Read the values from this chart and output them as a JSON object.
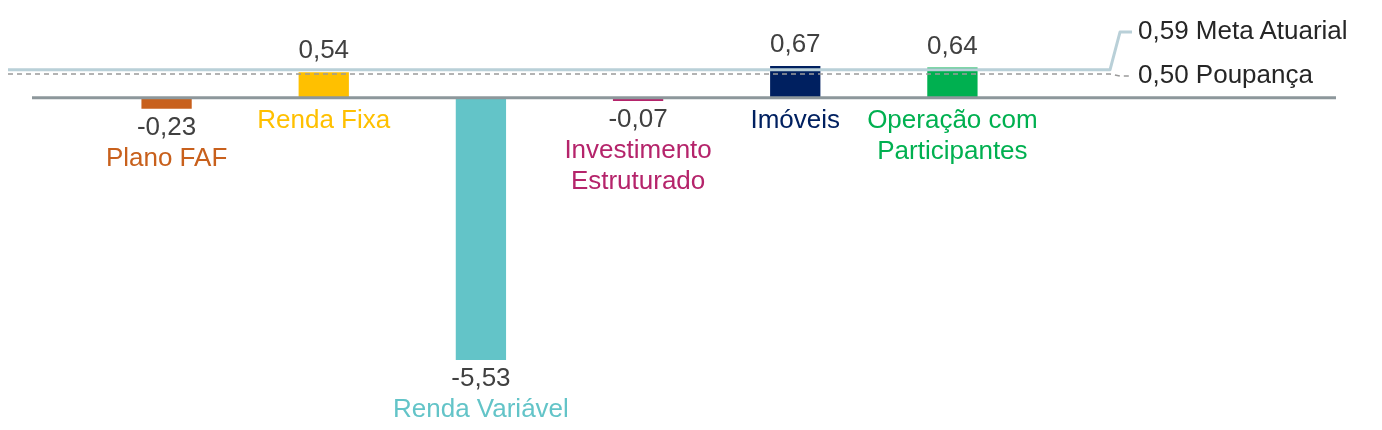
{
  "chart_data": {
    "type": "bar",
    "categories": [
      "Plano FAF",
      "Renda Fixa",
      "Renda Variável",
      "Investimento Estruturado",
      "Imóveis",
      "Operação com Participantes"
    ],
    "values": [
      -0.23,
      0.54,
      -5.53,
      -0.07,
      0.67,
      0.64
    ],
    "value_labels": [
      "-0,23",
      "0,54",
      "-5,53",
      "-0,07",
      "0,67",
      "0,64"
    ],
    "colors": [
      "#c8601c",
      "#ffc000",
      "#63c4c8",
      "#b5246b",
      "#002060",
      "#00b050"
    ],
    "tick_labels": "x",
    "ref_lines": [
      {
        "axis": "y",
        "value": 0.59,
        "label": "0,59 Meta Atuarial",
        "color": "#b9d0d8",
        "line_style": "solid"
      },
      {
        "axis": "y",
        "value": 0.5,
        "label": "0,50 Poupança",
        "color": "#9a9a9a",
        "line_style": "dashed"
      }
    ]
  }
}
